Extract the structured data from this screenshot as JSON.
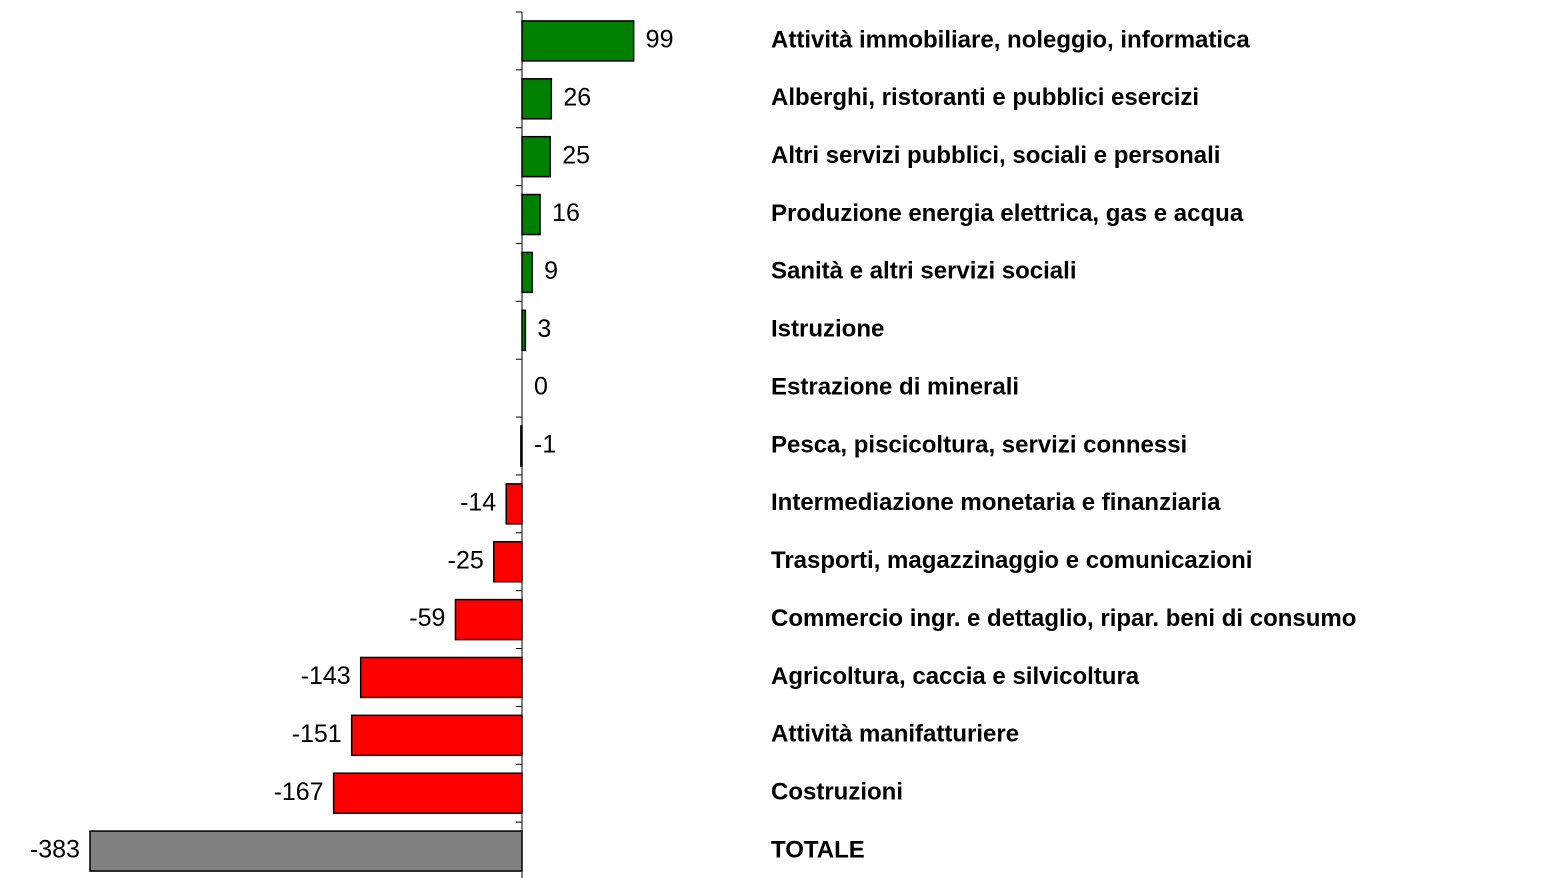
{
  "chart_data": {
    "type": "bar",
    "orientation": "horizontal",
    "categories": [
      "Attività immobiliare, noleggio, informatica",
      "Alberghi, ristoranti e pubblici esercizi",
      "Altri servizi pubblici, sociali e personali",
      "Produzione energia elettrica, gas e acqua",
      "Sanità e altri servizi sociali",
      "Istruzione",
      "Estrazione di minerali",
      "Pesca, piscicoltura, servizi connessi",
      "Intermediazione monetaria e finanziaria",
      "Trasporti, magazzinaggio e comunicazioni",
      "Commercio ingr. e dettaglio,  ripar. beni di consumo",
      "Agricoltura, caccia e silvicoltura",
      "Attività manifatturiere",
      "Costruzioni",
      "TOTALE"
    ],
    "values": [
      99,
      26,
      25,
      16,
      9,
      3,
      0,
      -1,
      -14,
      -25,
      -59,
      -143,
      -151,
      -167,
      -383
    ],
    "colors": [
      "#008000",
      "#008000",
      "#008000",
      "#008000",
      "#008000",
      "#008000",
      "#008000",
      "#ff0000",
      "#ff0000",
      "#ff0000",
      "#ff0000",
      "#ff0000",
      "#ff0000",
      "#ff0000",
      "#808080"
    ],
    "xlim": [
      -400,
      100
    ]
  }
}
